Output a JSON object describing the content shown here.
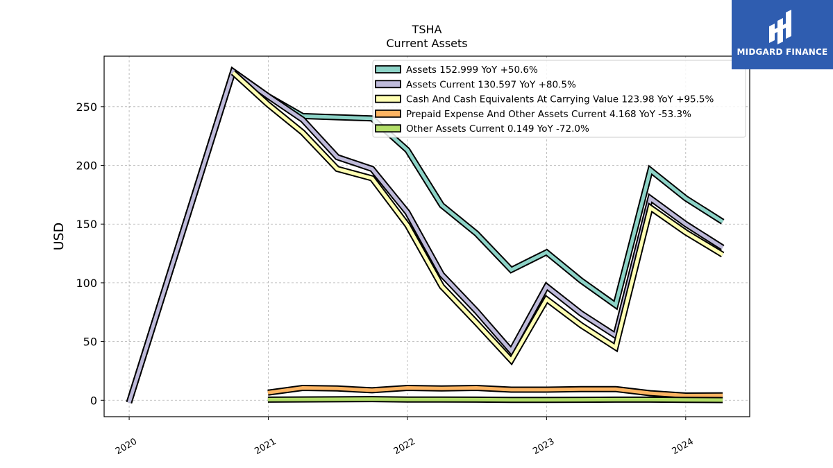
{
  "chart_data": {
    "type": "line",
    "title": "TSHA",
    "subtitle": "Current  Assets",
    "ylabel": "USD",
    "xlabel": "",
    "xlim": [
      2019.82,
      2024.46
    ],
    "ylim": [
      -14,
      293
    ],
    "yticks": [
      0,
      50,
      100,
      150,
      200,
      250
    ],
    "xticks": [
      2020,
      2021,
      2022,
      2023,
      2024
    ],
    "grid": true,
    "legend_position": "top-right",
    "series": [
      {
        "name": "Assets",
        "legend_label": "Assets  152.999 YoY +50.6%",
        "color": "#8dd3c7",
        "points": [
          [
            2019.999,
            -2
          ],
          [
            2020.747,
            280
          ],
          [
            2020.997,
            259
          ],
          [
            2021.247,
            242
          ],
          [
            2021.496,
            241
          ],
          [
            2021.746,
            240
          ],
          [
            2022.0,
            213
          ],
          [
            2022.247,
            166
          ],
          [
            2022.496,
            142
          ],
          [
            2022.746,
            111
          ],
          [
            2023.0,
            126
          ],
          [
            2023.247,
            102
          ],
          [
            2023.496,
            81
          ],
          [
            2023.746,
            196
          ],
          [
            2024.0,
            172
          ],
          [
            2024.266,
            152
          ]
        ]
      },
      {
        "name": "Assets Current",
        "legend_label": "Assets Current  130.597 YoY +80.5%",
        "color": "#bebada",
        "points": [
          [
            2019.999,
            -2
          ],
          [
            2020.747,
            280
          ],
          [
            2020.997,
            259
          ],
          [
            2021.247,
            239
          ],
          [
            2021.496,
            207
          ],
          [
            2021.746,
            197
          ],
          [
            2022.0,
            160
          ],
          [
            2022.247,
            107
          ],
          [
            2022.496,
            76
          ],
          [
            2022.746,
            42
          ],
          [
            2023.0,
            97
          ],
          [
            2023.247,
            74
          ],
          [
            2023.496,
            55
          ],
          [
            2023.746,
            172
          ],
          [
            2024.0,
            150
          ],
          [
            2024.266,
            130
          ]
        ]
      },
      {
        "name": "Cash And Cash Equivalents At Carrying Value",
        "legend_label": "Cash And Cash Equivalents At Carrying Value  123.98 YoY +95.5%",
        "color": "#ffffb3",
        "points": [
          [
            2020.747,
            279
          ],
          [
            2020.997,
            252
          ],
          [
            2021.247,
            228
          ],
          [
            2021.496,
            197
          ],
          [
            2021.746,
            189
          ],
          [
            2022.0,
            149
          ],
          [
            2022.247,
            97
          ],
          [
            2022.496,
            66
          ],
          [
            2022.746,
            34
          ],
          [
            2023.0,
            86
          ],
          [
            2023.247,
            64
          ],
          [
            2023.496,
            45
          ],
          [
            2023.746,
            164
          ],
          [
            2024.0,
            143
          ],
          [
            2024.266,
            124
          ]
        ]
      },
      {
        "name": "Prepaid Expense And Other Assets Current",
        "legend_label": "Prepaid Expense And Other Assets Current  4.168 YoY -53.3%",
        "color": "#fdb462",
        "points": [
          [
            2020.997,
            6.5
          ],
          [
            2021.247,
            10.5
          ],
          [
            2021.496,
            10
          ],
          [
            2021.746,
            8.5
          ],
          [
            2022.0,
            10.5
          ],
          [
            2022.247,
            10
          ],
          [
            2022.496,
            10.5
          ],
          [
            2022.746,
            9
          ],
          [
            2023.0,
            9
          ],
          [
            2023.247,
            9.5
          ],
          [
            2023.496,
            9.5
          ],
          [
            2023.746,
            6
          ],
          [
            2024.0,
            4
          ],
          [
            2024.266,
            4.2
          ]
        ]
      },
      {
        "name": "Other Assets Current",
        "legend_label": "Other Assets Current  0.149 YoY -72.0%",
        "color": "#b3de69",
        "points": [
          [
            2020.997,
            0.5
          ],
          [
            2021.247,
            0.7
          ],
          [
            2021.496,
            0.8
          ],
          [
            2021.746,
            1
          ],
          [
            2022.0,
            0.6
          ],
          [
            2022.247,
            0.6
          ],
          [
            2022.496,
            0.5
          ],
          [
            2022.746,
            0.3
          ],
          [
            2023.0,
            0.3
          ],
          [
            2023.247,
            0.4
          ],
          [
            2023.496,
            0.5
          ],
          [
            2023.746,
            0.5
          ],
          [
            2024.0,
            0.3
          ],
          [
            2024.266,
            0.15
          ]
        ]
      }
    ]
  },
  "logo": {
    "text": "MIDGARD FINANCE",
    "color": "#2f5db0"
  }
}
